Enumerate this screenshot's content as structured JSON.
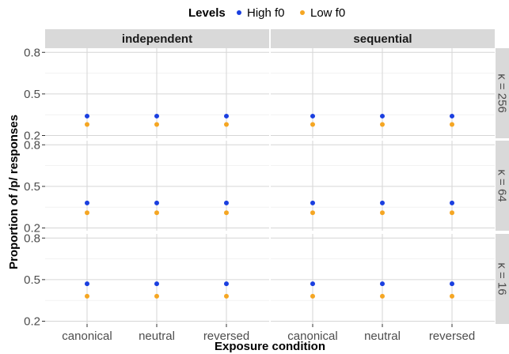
{
  "chart_data": {
    "type": "scatter",
    "legend": {
      "title": "Levels",
      "position": "top",
      "entries": [
        {
          "label": "High f0",
          "color": "#1a3fe0"
        },
        {
          "label": "Low f0",
          "color": "#f5a623"
        }
      ]
    },
    "xlabel": "Exposure condition",
    "ylabel": "Proportion of /p/ responses",
    "categories": [
      "canonical",
      "neutral",
      "reversed"
    ],
    "ylim": [
      0.18,
      0.83
    ],
    "yticks": [
      {
        "value": 0.2,
        "label": "0.2"
      },
      {
        "value": 0.5,
        "label": "0.5"
      },
      {
        "value": 0.8,
        "label": "0.8"
      }
    ],
    "grid": true,
    "columns": [
      "independent",
      "sequential"
    ],
    "rows": [
      "κ = 256",
      "κ = 64",
      "κ = 16"
    ],
    "panels": [
      {
        "row": 0,
        "col": 0,
        "series": [
          {
            "name": "High f0",
            "values": [
              0.34,
              0.34,
              0.34
            ]
          },
          {
            "name": "Low f0",
            "values": [
              0.28,
              0.28,
              0.28
            ]
          }
        ]
      },
      {
        "row": 0,
        "col": 1,
        "series": [
          {
            "name": "High f0",
            "values": [
              0.34,
              0.34,
              0.34
            ]
          },
          {
            "name": "Low f0",
            "values": [
              0.28,
              0.28,
              0.28
            ]
          }
        ]
      },
      {
        "row": 1,
        "col": 0,
        "series": [
          {
            "name": "High f0",
            "values": [
              0.38,
              0.38,
              0.38
            ]
          },
          {
            "name": "Low f0",
            "values": [
              0.31,
              0.31,
              0.31
            ]
          }
        ]
      },
      {
        "row": 1,
        "col": 1,
        "series": [
          {
            "name": "High f0",
            "values": [
              0.38,
              0.38,
              0.38
            ]
          },
          {
            "name": "Low f0",
            "values": [
              0.31,
              0.31,
              0.31
            ]
          }
        ]
      },
      {
        "row": 2,
        "col": 0,
        "series": [
          {
            "name": "High f0",
            "values": [
              0.47,
              0.47,
              0.47
            ]
          },
          {
            "name": "Low f0",
            "values": [
              0.38,
              0.38,
              0.38
            ]
          }
        ]
      },
      {
        "row": 2,
        "col": 1,
        "series": [
          {
            "name": "High f0",
            "values": [
              0.47,
              0.47,
              0.47
            ]
          },
          {
            "name": "Low f0",
            "values": [
              0.38,
              0.38,
              0.38
            ]
          }
        ]
      }
    ]
  }
}
